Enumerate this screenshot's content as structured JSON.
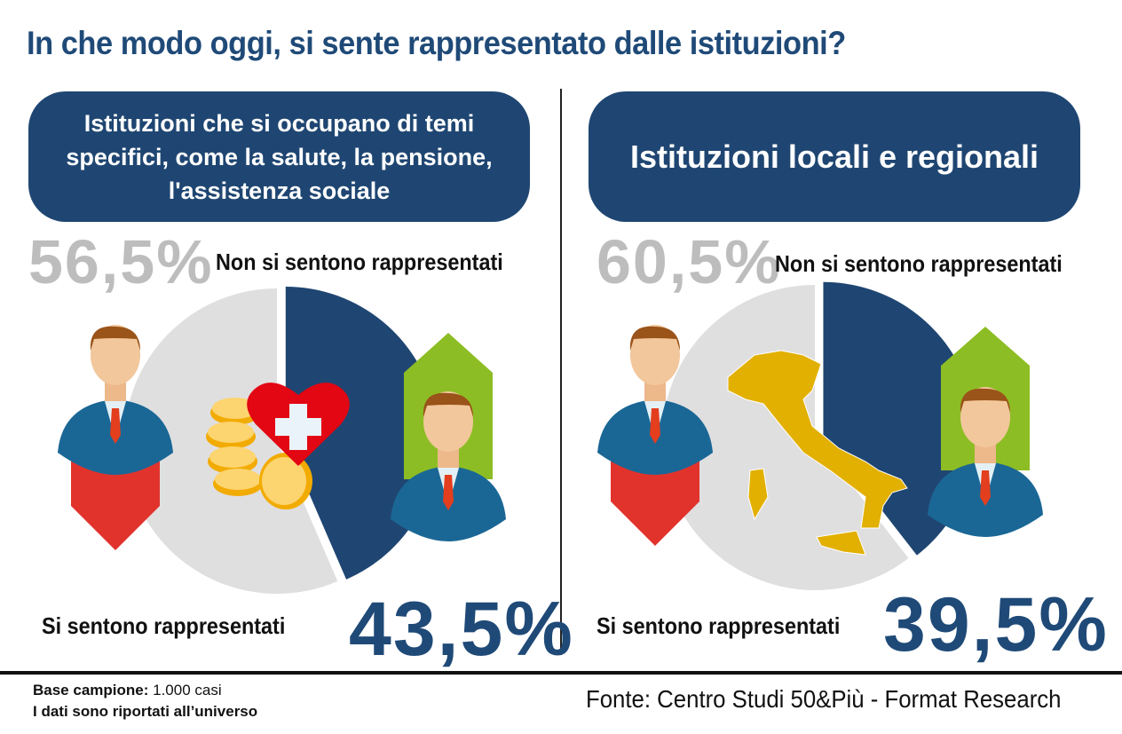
{
  "title": "In che modo oggi, si sente rappresentato dalle istituzioni?",
  "colors": {
    "navy": "#1f4672",
    "grey": "#e0dfe0",
    "red": "#e1332c",
    "green": "#8dbd24"
  },
  "chart_data": [
    {
      "type": "pie",
      "title": "Istituzioni che si occupano di temi specifici, come la salute, la pensione, l'assistenza sociale",
      "slices": [
        {
          "label": "Si sentono rappresentati",
          "value": 43.5,
          "display": "43,5%"
        },
        {
          "label": "Non si sentono rappresentati",
          "value": 56.5,
          "display": "56,5%"
        }
      ]
    },
    {
      "type": "pie",
      "title": "Istituzioni locali e regionali",
      "slices": [
        {
          "label": "Si sentono rappresentati",
          "value": 39.5,
          "display": "39,5%"
        },
        {
          "label": "Non si sentono rappresentati",
          "value": 60.5,
          "display": "60,5%"
        }
      ]
    }
  ],
  "footer": {
    "base_label": "Base campione:",
    "base_value": " 1.000 casi",
    "note": "I dati sono riportati all’universo",
    "source": "Fonte: Centro Studi 50&Più - Format Research"
  }
}
